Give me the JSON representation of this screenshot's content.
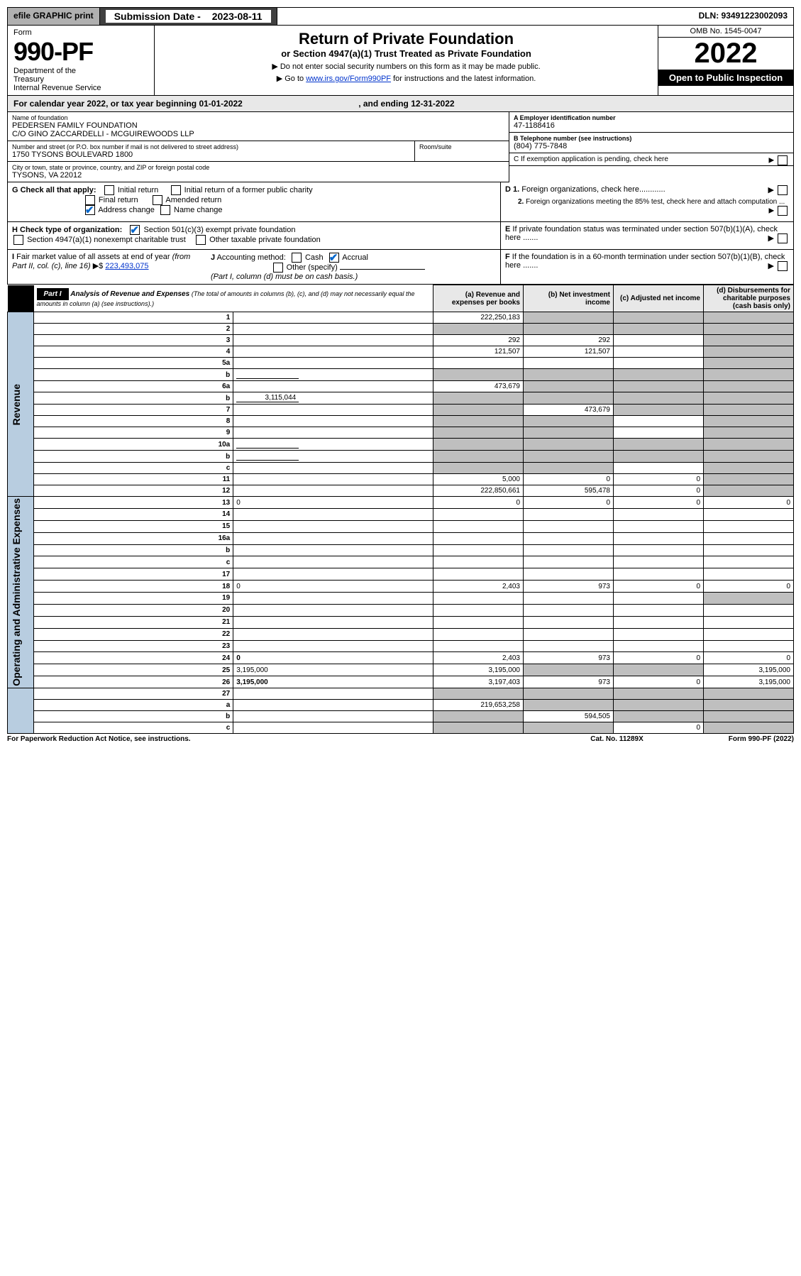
{
  "topbar": {
    "efile": "efile GRAPHIC print",
    "submission_label": "Submission Date -",
    "submission_date": "2023-08-11",
    "dln": "DLN: 93491223002093"
  },
  "header": {
    "form_label": "Form",
    "form_num": "990-PF",
    "dept": "Department of the Treasury\nInternal Revenue Service",
    "main_title": "Return of Private Foundation",
    "sub_title": "or Section 4947(a)(1) Trust Treated as Private Foundation",
    "instr1": "▶ Do not enter social security numbers on this form as it may be made public.",
    "instr2_pre": "▶ Go to ",
    "instr2_link": "www.irs.gov/Form990PF",
    "instr2_post": " for instructions and the latest information.",
    "omb": "OMB No. 1545-0047",
    "year": "2022",
    "inspect": "Open to Public Inspection"
  },
  "calyear": {
    "text_pre": "For calendar year 2022, or tax year beginning ",
    "begin": "01-01-2022",
    "mid": " , and ending ",
    "end": "12-31-2022"
  },
  "name_block": {
    "label": "Name of foundation",
    "line1": "PEDERSEN FAMILY FOUNDATION",
    "line2": "C/O GINO ZACCARDELLI - MCGUIREWOODS LLP"
  },
  "addr_block": {
    "label": "Number and street (or P.O. box number if mail is not delivered to street address)",
    "val": "1750 TYSONS BOULEVARD 1800",
    "room_label": "Room/suite"
  },
  "city_block": {
    "label": "City or town, state or province, country, and ZIP or foreign postal code",
    "val": "TYSONS, VA  22012"
  },
  "ein": {
    "label": "A Employer identification number",
    "val": "47-1188416"
  },
  "phone": {
    "label": "B Telephone number (see instructions)",
    "val": "(804) 775-7848"
  },
  "c_text": "C If exemption application is pending, check here",
  "d1_text": "D 1. Foreign organizations, check here............",
  "d2_text": "2. Foreign organizations meeting the 85% test, check here and attach computation ...",
  "e_text": "E If private foundation status was terminated under section 507(b)(1)(A), check here .......",
  "f_text": "F If the foundation is in a 60-month termination under section 507(b)(1)(B), check here .......",
  "g": {
    "label": "G Check all that apply:",
    "opts": [
      "Initial return",
      "Final return",
      "Address change",
      "Initial return of a former public charity",
      "Amended return",
      "Name change"
    ]
  },
  "h": {
    "label": "H Check type of organization:",
    "o1": "Section 501(c)(3) exempt private foundation",
    "o2": "Section 4947(a)(1) nonexempt charitable trust",
    "o3": "Other taxable private foundation"
  },
  "i": {
    "label": "I Fair market value of all assets at end of year (from Part II, col. (c), line 16)",
    "arrow": "▶$",
    "val": "223,493,075"
  },
  "j": {
    "label": "J Accounting method:",
    "o1": "Cash",
    "o2": "Accrual",
    "o3": "Other (specify)",
    "note": "(Part I, column (d) must be on cash basis.)"
  },
  "part1": {
    "label": "Part I",
    "title": "Analysis of Revenue and Expenses",
    "desc": "(The total of amounts in columns (b), (c), and (d) may not necessarily equal the amounts in column (a) (see instructions).)",
    "col_a": "(a) Revenue and expenses per books",
    "col_b": "(b) Net investment income",
    "col_c": "(c) Adjusted net income",
    "col_d": "(d) Disbursements for charitable purposes (cash basis only)"
  },
  "sideR": "Revenue",
  "sideE": "Operating and Administrative Expenses",
  "rows": [
    {
      "n": "1",
      "d": "",
      "a": "222,250,183",
      "b": "",
      "c": "",
      "ga": false,
      "gb": true,
      "gc": true,
      "gd": true
    },
    {
      "n": "2",
      "d": "",
      "a": "",
      "b": "",
      "c": "",
      "ga": true,
      "gb": true,
      "gc": true,
      "gd": true
    },
    {
      "n": "3",
      "d": "",
      "a": "292",
      "b": "292",
      "c": "",
      "ga": false,
      "gb": false,
      "gc": false,
      "gd": true
    },
    {
      "n": "4",
      "d": "",
      "a": "121,507",
      "b": "121,507",
      "c": "",
      "ga": false,
      "gb": false,
      "gc": false,
      "gd": true
    },
    {
      "n": "5a",
      "d": "",
      "a": "",
      "b": "",
      "c": "",
      "ga": false,
      "gb": false,
      "gc": false,
      "gd": true
    },
    {
      "n": "b",
      "d": "",
      "a": "",
      "b": "",
      "c": "",
      "ga": true,
      "gb": true,
      "gc": true,
      "gd": true,
      "sub": true
    },
    {
      "n": "6a",
      "d": "",
      "a": "473,679",
      "b": "",
      "c": "",
      "ga": false,
      "gb": true,
      "gc": true,
      "gd": true
    },
    {
      "n": "b",
      "d": "",
      "a": "",
      "b": "",
      "c": "",
      "ga": true,
      "gb": true,
      "gc": true,
      "gd": true,
      "sub": true,
      "subval": "3,115,044"
    },
    {
      "n": "7",
      "d": "",
      "a": "",
      "b": "473,679",
      "c": "",
      "ga": true,
      "gb": false,
      "gc": true,
      "gd": true
    },
    {
      "n": "8",
      "d": "",
      "a": "",
      "b": "",
      "c": "",
      "ga": true,
      "gb": true,
      "gc": false,
      "gd": true
    },
    {
      "n": "9",
      "d": "",
      "a": "",
      "b": "",
      "c": "",
      "ga": true,
      "gb": true,
      "gc": false,
      "gd": true
    },
    {
      "n": "10a",
      "d": "",
      "a": "",
      "b": "",
      "c": "",
      "ga": true,
      "gb": true,
      "gc": true,
      "gd": true,
      "sub": true
    },
    {
      "n": "b",
      "d": "",
      "a": "",
      "b": "",
      "c": "",
      "ga": true,
      "gb": true,
      "gc": true,
      "gd": true,
      "sub": true
    },
    {
      "n": "c",
      "d": "",
      "a": "",
      "b": "",
      "c": "",
      "ga": true,
      "gb": true,
      "gc": false,
      "gd": true
    },
    {
      "n": "11",
      "d": "",
      "a": "5,000",
      "b": "0",
      "c": "0",
      "ga": false,
      "gb": false,
      "gc": false,
      "gd": true
    },
    {
      "n": "12",
      "d": "",
      "a": "222,850,661",
      "b": "595,478",
      "c": "0",
      "ga": false,
      "gb": false,
      "gc": false,
      "gd": true,
      "bold": true
    }
  ],
  "erows": [
    {
      "n": "13",
      "d": "0",
      "a": "0",
      "b": "0",
      "c": "0"
    },
    {
      "n": "14",
      "d": "",
      "a": "",
      "b": "",
      "c": ""
    },
    {
      "n": "15",
      "d": "",
      "a": "",
      "b": "",
      "c": ""
    },
    {
      "n": "16a",
      "d": "",
      "a": "",
      "b": "",
      "c": ""
    },
    {
      "n": "b",
      "d": "",
      "a": "",
      "b": "",
      "c": ""
    },
    {
      "n": "c",
      "d": "",
      "a": "",
      "b": "",
      "c": ""
    },
    {
      "n": "17",
      "d": "",
      "a": "",
      "b": "",
      "c": ""
    },
    {
      "n": "18",
      "d": "0",
      "a": "2,403",
      "b": "973",
      "c": "0"
    },
    {
      "n": "19",
      "d": "",
      "a": "",
      "b": "",
      "c": "",
      "gd": true
    },
    {
      "n": "20",
      "d": "",
      "a": "",
      "b": "",
      "c": ""
    },
    {
      "n": "21",
      "d": "",
      "a": "",
      "b": "",
      "c": ""
    },
    {
      "n": "22",
      "d": "",
      "a": "",
      "b": "",
      "c": ""
    },
    {
      "n": "23",
      "d": "",
      "a": "",
      "b": "",
      "c": ""
    },
    {
      "n": "24",
      "d": "0",
      "a": "2,403",
      "b": "973",
      "c": "0",
      "bold": true
    },
    {
      "n": "25",
      "d": "3,195,000",
      "a": "3,195,000",
      "b": "",
      "c": "",
      "gb": true,
      "gc": true
    },
    {
      "n": "26",
      "d": "3,195,000",
      "a": "3,197,403",
      "b": "973",
      "c": "0",
      "bold": true
    }
  ],
  "frows": [
    {
      "n": "27",
      "d": "",
      "a": "",
      "b": "",
      "c": "",
      "ga": true,
      "gb": true,
      "gc": true,
      "gd": true
    },
    {
      "n": "a",
      "d": "",
      "a": "219,653,258",
      "b": "",
      "c": "",
      "bold": true,
      "gb": true,
      "gc": true,
      "gd": true
    },
    {
      "n": "b",
      "d": "",
      "a": "",
      "b": "594,505",
      "c": "",
      "bold": true,
      "ga": true,
      "gc": true,
      "gd": true
    },
    {
      "n": "c",
      "d": "",
      "a": "",
      "b": "",
      "c": "0",
      "bold": true,
      "ga": true,
      "gb": true,
      "gd": true
    }
  ],
  "footer": {
    "l": "For Paperwork Reduction Act Notice, see instructions.",
    "c": "Cat. No. 11289X",
    "r": "Form 990-PF (2022)"
  }
}
